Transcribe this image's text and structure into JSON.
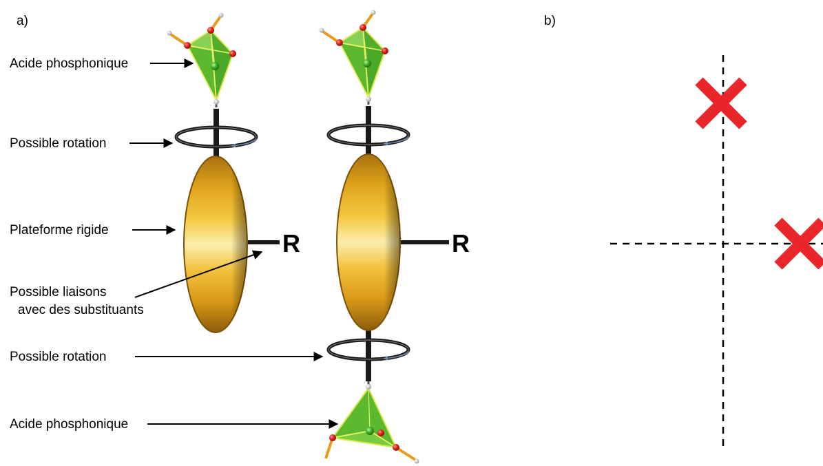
{
  "panels": {
    "a": "a)",
    "b": "b)"
  },
  "labels": {
    "acid_top": "Acide phosphonique",
    "rotation_top": "Possible rotation",
    "platform": "Plateforme rigide",
    "bonds_line1": "Possible liaisons",
    "bonds_line2": "avec des substituants",
    "rotation_bottom": "Possible rotation",
    "acid_bottom": "Acide phosphonique"
  },
  "substituent_left": "R",
  "substituent_right": "R",
  "colors": {
    "tetrahedron": "#5cb82e",
    "tetra_edge": "#d9e84a",
    "oxygen": "#e0201a",
    "platform_gold": "#e5ac1e",
    "platform_light": "#fbeeaa",
    "cross_red": "#e8262a"
  }
}
